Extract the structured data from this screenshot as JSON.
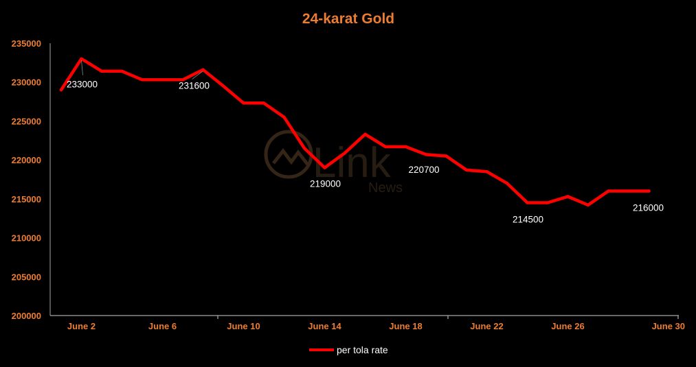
{
  "chart_data": {
    "type": "line",
    "title": "24-karat Gold",
    "xlabel": "",
    "ylabel": "",
    "ylim": [
      200000,
      235000
    ],
    "yticks": [
      "235000",
      "230000",
      "225000",
      "220000",
      "215000",
      "210000",
      "205000",
      "200000"
    ],
    "xtick_labels": [
      {
        "day": 2,
        "label": "June 2"
      },
      {
        "day": 6,
        "label": "June 6"
      },
      {
        "day": 10,
        "label": "June 10"
      },
      {
        "day": 14,
        "label": "June 14"
      },
      {
        "day": 18,
        "label": "June 18"
      },
      {
        "day": 22,
        "label": "June 22"
      },
      {
        "day": 26,
        "label": "June 26"
      },
      {
        "day": 30,
        "label": "June 30"
      }
    ],
    "x": [
      1,
      2,
      3,
      4,
      5,
      6,
      7,
      8,
      9,
      10,
      11,
      12,
      13,
      14,
      15,
      16,
      17,
      18,
      19,
      20,
      21,
      22,
      23,
      24,
      25,
      26,
      27,
      28,
      29,
      30
    ],
    "series": [
      {
        "name": "per tola rate",
        "color": "#FF0000",
        "values": [
          229000,
          233000,
          231400,
          231400,
          230300,
          230300,
          230300,
          231600,
          229500,
          227300,
          227300,
          225500,
          221500,
          219000,
          220900,
          223300,
          221700,
          221700,
          220700,
          220500,
          218700,
          218500,
          217000,
          214500,
          214500,
          215300,
          214200,
          216000,
          216000,
          216000
        ]
      }
    ],
    "data_labels": [
      {
        "day": 2,
        "text": "233000"
      },
      {
        "day": 8,
        "text": "231600"
      },
      {
        "day": 14,
        "text": "219000"
      },
      {
        "day": 19,
        "text": "220700"
      },
      {
        "day": 24,
        "text": "214500"
      },
      {
        "day": 30,
        "text": "216000"
      }
    ],
    "legend": {
      "position": "bottom",
      "label": "per tola rate"
    },
    "grid": false
  },
  "watermark": {
    "brand": "Link",
    "sub": "News"
  },
  "colors": {
    "background": "#000000",
    "text_accent": "#ED7D31",
    "series": "#FF0000",
    "axis": "#a6a6a6"
  }
}
